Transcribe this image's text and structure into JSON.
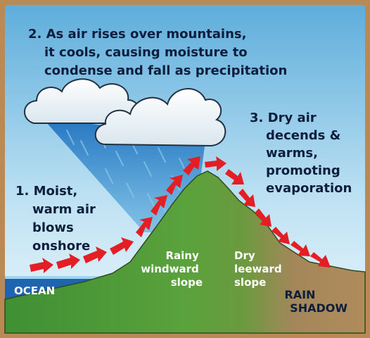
{
  "step2": {
    "line1": "2. As air rises over mountains,",
    "line2": "it cools, causing moisture to",
    "line3": "condense and fall as precipitation"
  },
  "step3": {
    "line1": "3. Dry air",
    "line2": "decends &",
    "line3": "warms,",
    "line4": "promoting",
    "line5": "evaporation"
  },
  "step1": {
    "line1": "1. Moist,",
    "line2": "warm air",
    "line3": "blows",
    "line4": "onshore"
  },
  "windward": {
    "line1": "Rainy",
    "line2": "windward",
    "line3": "slope"
  },
  "leeward": {
    "line1": "Dry",
    "line2": "leeward",
    "line3": "slope"
  },
  "ocean_label": "OCEAN",
  "rain_shadow": {
    "line1": "RAIN",
    "line2": "SHADOW"
  },
  "colors": {
    "border": "#b98a55",
    "sky_top": "#6fb6e0",
    "sky_bottom": "#e6f4fb",
    "ocean": "#1f63b3",
    "green": "#4f9a3a",
    "brown": "#a8865a",
    "arrow": "#e41e25",
    "text": "#0d1e3c",
    "white_text": "#ffffff"
  }
}
